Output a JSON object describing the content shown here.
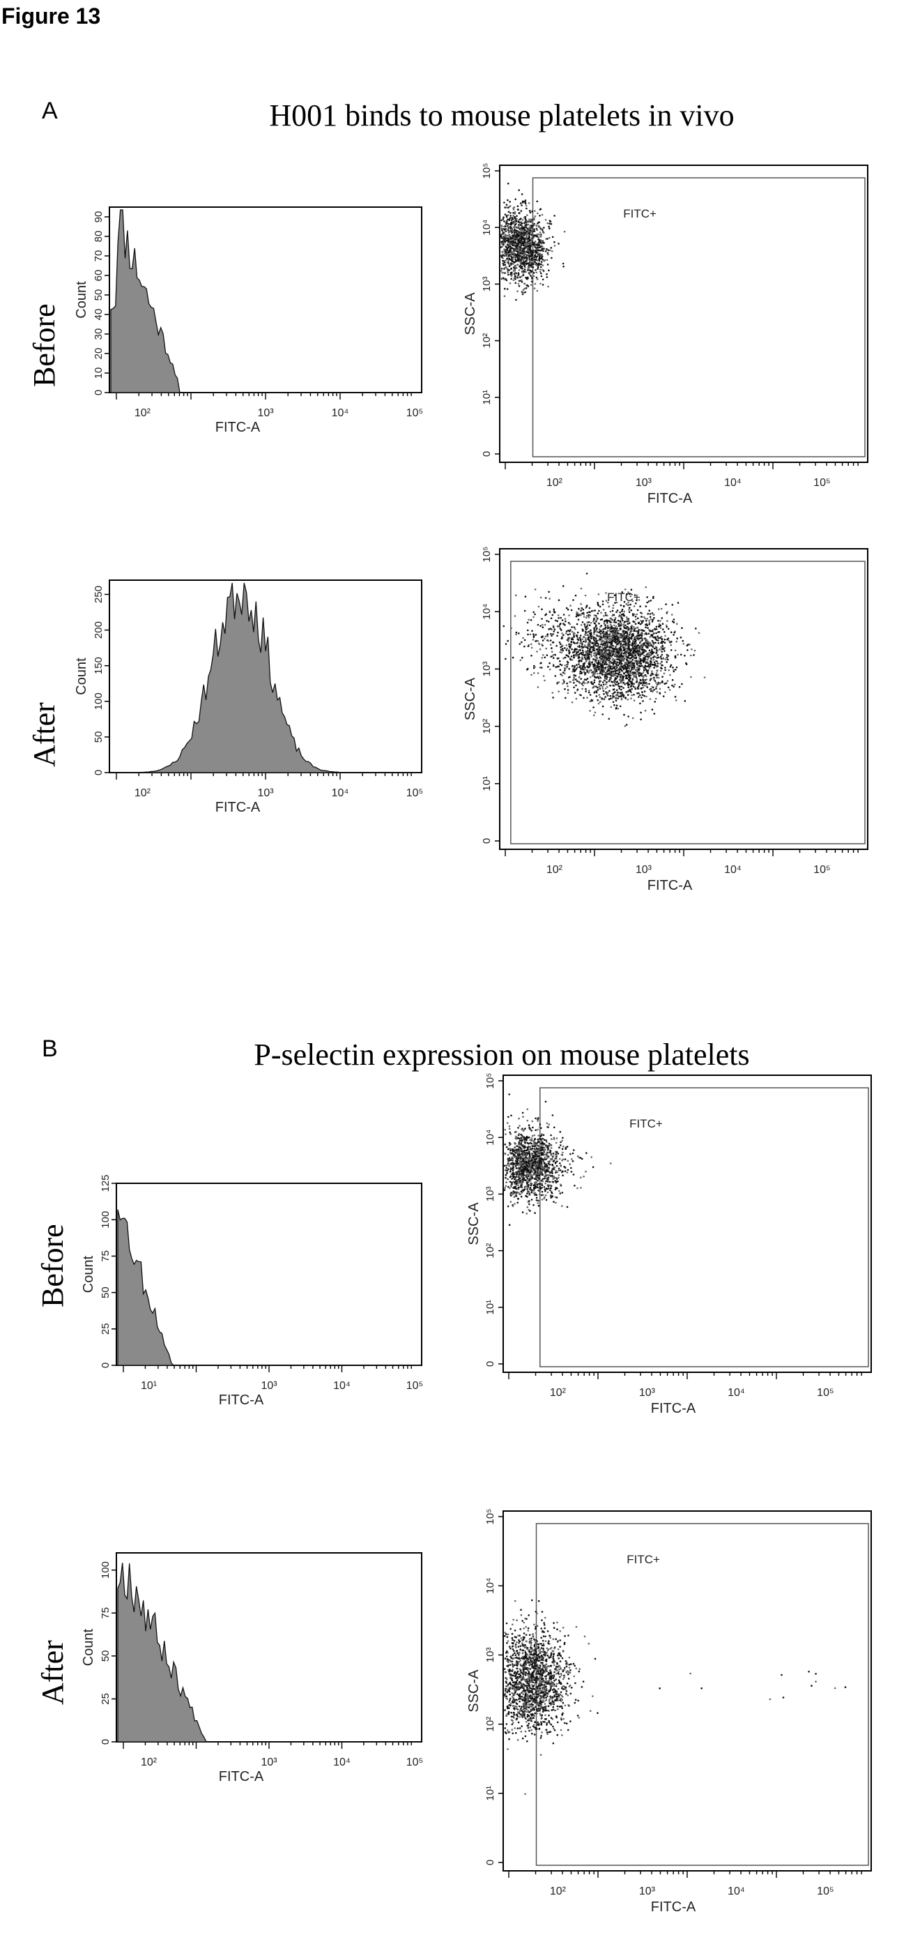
{
  "figure": {
    "title": "Figure 13"
  },
  "panels": [
    {
      "letter": "A",
      "title": "H001 binds to mouse platelets in vivo",
      "rows": [
        {
          "label": "Before",
          "histogram": {
            "ylabel": "Count",
            "xlabel": "FITC-A",
            "yticks": [
              "0",
              "10",
              "20",
              "30",
              "40",
              "50",
              "60",
              "70",
              "80",
              "90"
            ],
            "xticks": [
              "10²",
              "10³",
              "10⁴",
              "10⁵"
            ],
            "ymax": 95
          },
          "scatter": {
            "ylabel": "SSC-A",
            "xlabel": "FITC-A",
            "gate_label": "FITC+",
            "yticks": [
              "0",
              "10¹",
              "10²",
              "10³",
              "10⁴",
              "10⁵"
            ],
            "xticks": [
              "10²",
              "10³",
              "10⁴",
              "10⁵"
            ]
          }
        },
        {
          "label": "After",
          "histogram": {
            "ylabel": "Count",
            "xlabel": "FITC-A",
            "yticks": [
              "0",
              "50",
              "100",
              "150",
              "200",
              "250"
            ],
            "xticks": [
              "10²",
              "10³",
              "10⁴",
              "10⁵"
            ],
            "ymax": 270
          },
          "scatter": {
            "ylabel": "SSC-A",
            "xlabel": "FITC-A",
            "gate_label": "FITC+",
            "yticks": [
              "0",
              "10¹",
              "10²",
              "10³",
              "10⁴",
              "10⁵"
            ],
            "xticks": [
              "10²",
              "10³",
              "10⁴",
              "10⁵"
            ]
          }
        }
      ]
    },
    {
      "letter": "B",
      "title": "P-selectin expression on mouse platelets",
      "rows": [
        {
          "label": "Before",
          "histogram": {
            "ylabel": "Count",
            "xlabel": "FITC-A",
            "yticks": [
              "0",
              "25",
              "50",
              "75",
              "100",
              "125"
            ],
            "xticks": [
              "10¹",
              "10³",
              "10⁴",
              "10⁵"
            ],
            "ymax": 125
          },
          "scatter": {
            "ylabel": "SSC-A",
            "xlabel": "FITC-A",
            "gate_label": "FITC+",
            "yticks": [
              "0",
              "10¹",
              "10²",
              "10³",
              "10⁴",
              "10⁵"
            ],
            "xticks": [
              "10²",
              "10³",
              "10⁴",
              "10⁵"
            ]
          }
        },
        {
          "label": "After",
          "histogram": {
            "ylabel": "Count",
            "xlabel": "FITC-A",
            "yticks": [
              "0",
              "25",
              "50",
              "75",
              "100"
            ],
            "xticks": [
              "10²",
              "10³",
              "10⁴",
              "10⁵"
            ],
            "ymax": 110
          },
          "scatter": {
            "ylabel": "SSC-A",
            "xlabel": "FITC-A",
            "gate_label": "FITC+",
            "yticks": [
              "0",
              "10¹",
              "10²",
              "10³",
              "10⁴",
              "10⁵"
            ],
            "xticks": [
              "10²",
              "10³",
              "10⁴",
              "10⁵"
            ]
          }
        }
      ]
    }
  ],
  "chart_data": [
    {
      "type": "histogram",
      "panel": "A",
      "condition": "Before",
      "xlabel": "FITC-A",
      "ylabel": "Count",
      "ylim": [
        0,
        95
      ],
      "x_log": true,
      "peak": {
        "x": 30,
        "y": 92
      }
    },
    {
      "type": "scatter",
      "panel": "A",
      "condition": "Before",
      "xlabel": "FITC-A",
      "ylabel": "SSC-A",
      "x_log": true,
      "y_log": true,
      "gate": "FITC+",
      "cluster_center": {
        "x": 30,
        "y": 3000
      }
    },
    {
      "type": "histogram",
      "panel": "A",
      "condition": "After",
      "xlabel": "FITC-A",
      "ylabel": "Count",
      "ylim": [
        0,
        270
      ],
      "x_log": true,
      "peak": {
        "x": 600,
        "y": 262
      }
    },
    {
      "type": "scatter",
      "panel": "A",
      "condition": "After",
      "xlabel": "FITC-A",
      "ylabel": "SSC-A",
      "x_log": true,
      "y_log": true,
      "gate": "FITC+",
      "cluster_center": {
        "x": 600,
        "y": 1500
      }
    },
    {
      "type": "histogram",
      "panel": "B",
      "condition": "Before",
      "xlabel": "FITC-A",
      "ylabel": "Count",
      "ylim": [
        0,
        125
      ],
      "x_log": true,
      "peak": {
        "x": 2,
        "y": 115
      }
    },
    {
      "type": "scatter",
      "panel": "B",
      "condition": "Before",
      "xlabel": "FITC-A",
      "ylabel": "SSC-A",
      "x_log": true,
      "y_log": true,
      "gate": "FITC+",
      "cluster_center": {
        "x": 30,
        "y": 2500
      }
    },
    {
      "type": "histogram",
      "panel": "B",
      "condition": "After",
      "xlabel": "FITC-A",
      "ylabel": "Count",
      "ylim": [
        0,
        110
      ],
      "x_log": true,
      "peak": {
        "x": 30,
        "y": 105
      }
    },
    {
      "type": "scatter",
      "panel": "B",
      "condition": "After",
      "xlabel": "FITC-A",
      "ylabel": "SSC-A",
      "x_log": true,
      "y_log": true,
      "gate": "FITC+",
      "cluster_center": {
        "x": 60,
        "y": 1500
      }
    }
  ]
}
